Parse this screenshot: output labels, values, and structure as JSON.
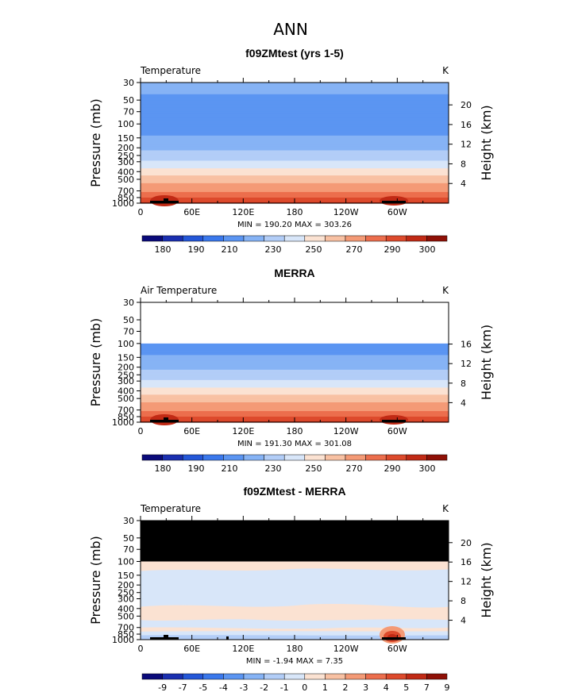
{
  "figure_title": "ANN",
  "chart_data": [
    {
      "type": "heatmap",
      "title": "f09ZMtest (yrs 1-5)",
      "left_label": "Temperature",
      "units": "K",
      "ylabel": "Pressure (mb)",
      "ylabel_right": "Height (km)",
      "x_ticks": [
        "0",
        "60E",
        "120E",
        "180",
        "120W",
        "60W"
      ],
      "y_ticks": [
        "30",
        "50",
        "70",
        "100",
        "150",
        "200",
        "250",
        "300",
        "400",
        "500",
        "700",
        "850",
        "1000"
      ],
      "height_ticks": [
        "4",
        "8",
        "12",
        "16",
        "20"
      ],
      "stats": "MIN = 190.20   MAX = 303.26",
      "colorbar_labels": [
        "180",
        "190",
        "210",
        "230",
        "250",
        "270",
        "290",
        "300"
      ],
      "profile_k": [
        {
          "p": 30,
          "t": 214
        },
        {
          "p": 50,
          "t": 208
        },
        {
          "p": 70,
          "t": 203
        },
        {
          "p": 100,
          "t": 200
        },
        {
          "p": 150,
          "t": 211
        },
        {
          "p": 200,
          "t": 218
        },
        {
          "p": 250,
          "t": 224
        },
        {
          "p": 300,
          "t": 231
        },
        {
          "p": 400,
          "t": 243
        },
        {
          "p": 500,
          "t": 255
        },
        {
          "p": 700,
          "t": 269
        },
        {
          "p": 850,
          "t": 280
        },
        {
          "p": 1000,
          "t": 292
        }
      ]
    },
    {
      "type": "heatmap",
      "title": "MERRA",
      "left_label": "Air Temperature",
      "units": "K",
      "ylabel": "Pressure (mb)",
      "ylabel_right": "Height (km)",
      "x_ticks": [
        "0",
        "60E",
        "120E",
        "180",
        "120W",
        "60W"
      ],
      "y_ticks": [
        "30",
        "50",
        "70",
        "100",
        "150",
        "200",
        "250",
        "300",
        "400",
        "500",
        "700",
        "850",
        "1000"
      ],
      "height_ticks": [
        "4",
        "8",
        "12",
        "16"
      ],
      "stats": "MIN = 191.30   MAX = 301.08",
      "colorbar_labels": [
        "180",
        "190",
        "210",
        "230",
        "250",
        "270",
        "290",
        "300"
      ],
      "data_top_p": 100,
      "profile_k": [
        {
          "p": 100,
          "t": 200
        },
        {
          "p": 150,
          "t": 211
        },
        {
          "p": 200,
          "t": 218
        },
        {
          "p": 250,
          "t": 224
        },
        {
          "p": 300,
          "t": 231
        },
        {
          "p": 400,
          "t": 243
        },
        {
          "p": 500,
          "t": 255
        },
        {
          "p": 700,
          "t": 269
        },
        {
          "p": 850,
          "t": 280
        },
        {
          "p": 1000,
          "t": 292
        }
      ]
    },
    {
      "type": "heatmap",
      "title": "f09ZMtest - MERRA",
      "left_label": "Temperature",
      "units": "K",
      "ylabel": "Pressure (mb)",
      "ylabel_right": "Height (km)",
      "x_ticks": [
        "0",
        "60E",
        "120E",
        "180",
        "120W",
        "60W"
      ],
      "y_ticks": [
        "30",
        "50",
        "70",
        "100",
        "150",
        "200",
        "250",
        "300",
        "400",
        "500",
        "700",
        "850",
        "1000"
      ],
      "height_ticks": [
        "4",
        "8",
        "12",
        "16",
        "20"
      ],
      "stats": "MIN =   -1.94   MAX =     7.35",
      "colorbar_labels": [
        "-9",
        "-7",
        "-5",
        "-4",
        "-3",
        "-2",
        "-1",
        "0",
        "1",
        "2",
        "3",
        "4",
        "5",
        "7",
        "9"
      ],
      "no_data_above_p": 100
    }
  ],
  "colors": {
    "abs_scale": [
      "#0a0a7a",
      "#1a2fb0",
      "#2457d8",
      "#3a78ec",
      "#5b95f2",
      "#86b3f5",
      "#b2cdf7",
      "#d8e6f9",
      "#fbe2d2",
      "#f8c1a3",
      "#f49a76",
      "#ec6e4d",
      "#dd4a2c",
      "#c12a15",
      "#8f1006"
    ],
    "diff_scale": [
      "#0a0a7a",
      "#1a2fb0",
      "#2457d8",
      "#3a78ec",
      "#5b95f2",
      "#86b3f5",
      "#b2cdf7",
      "#d8e6f9",
      "#fbe2d2",
      "#f8c1a3",
      "#f49a76",
      "#ec6e4d",
      "#dd4a2c",
      "#c12a15",
      "#8f1006"
    ],
    "no_data": "#000000"
  }
}
